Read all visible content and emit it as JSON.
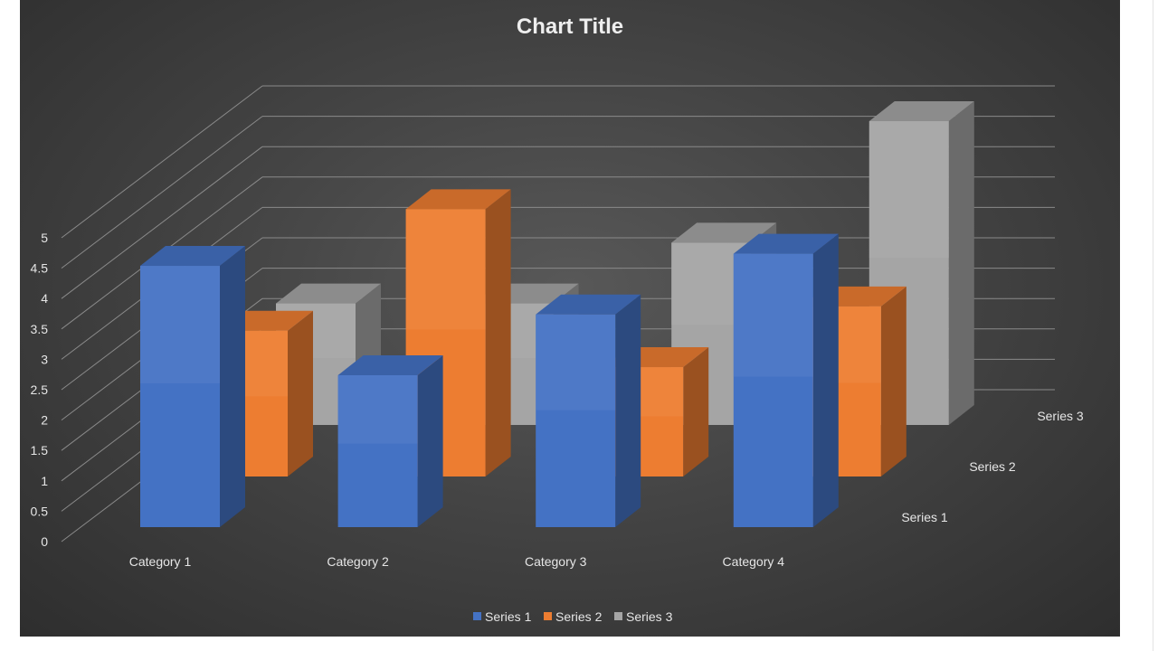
{
  "chart_data": {
    "type": "bar",
    "subtype": "3d-column",
    "title": "Chart Title",
    "categories": [
      "Category 1",
      "Category 2",
      "Category 3",
      "Category 4"
    ],
    "series": [
      {
        "name": "Series 1",
        "values": [
          4.3,
          2.5,
          3.5,
          4.5
        ],
        "color": "#4472C4"
      },
      {
        "name": "Series 2",
        "values": [
          2.4,
          4.4,
          1.8,
          2.8
        ],
        "color": "#ED7D31"
      },
      {
        "name": "Series 3",
        "values": [
          2.0,
          2.0,
          3.0,
          5.0
        ],
        "color": "#A5A5A5"
      }
    ],
    "ylim": [
      0,
      5
    ],
    "yticks": [
      "0",
      "0.5",
      "1",
      "1.5",
      "2",
      "2.5",
      "3",
      "3.5",
      "4",
      "4.5",
      "5"
    ],
    "grid": true,
    "legend": "bottom",
    "background": "#404040"
  }
}
